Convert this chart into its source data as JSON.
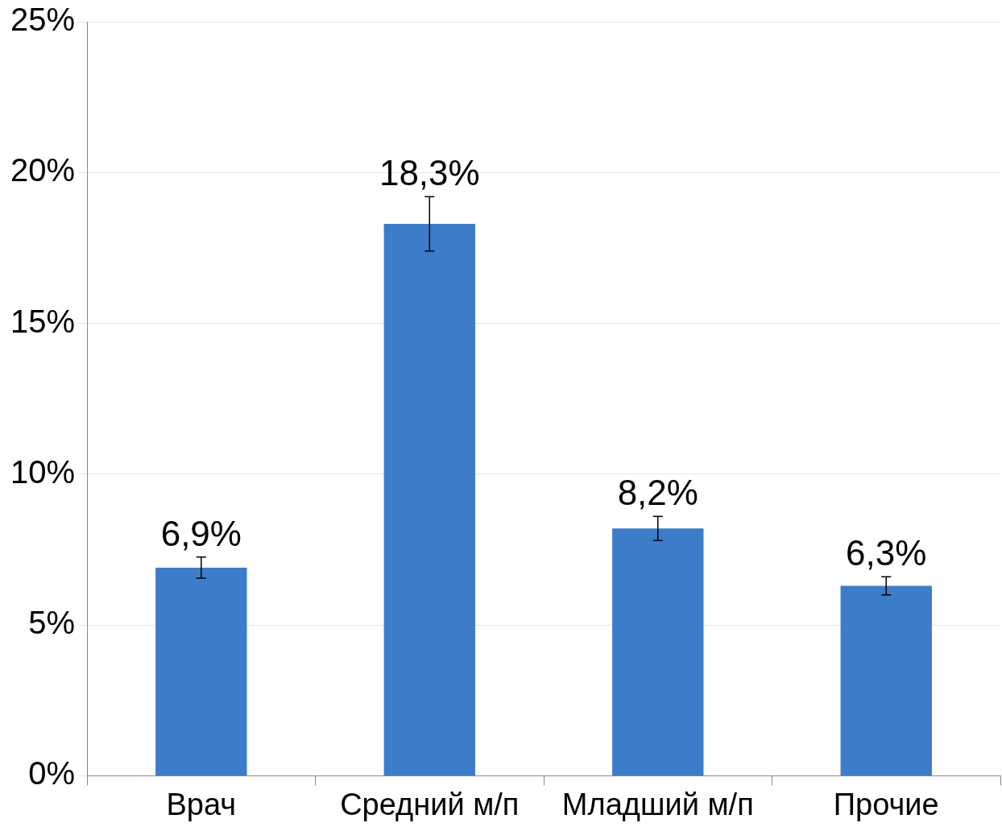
{
  "chart_data": {
    "type": "bar",
    "categories": [
      "Врач",
      "Средний м/п",
      "Младший м/п",
      "Прочие"
    ],
    "values": [
      6.9,
      18.3,
      8.2,
      6.3
    ],
    "errors": [
      0.35,
      0.9,
      0.4,
      0.3
    ],
    "value_labels": [
      "6,9%",
      "18,3%",
      "8,2%",
      "6,3%"
    ],
    "color": "#3d7cc9",
    "ylim": [
      0,
      25
    ],
    "yticks": [
      {
        "value": 0,
        "label": "0%"
      },
      {
        "value": 5,
        "label": "5%"
      },
      {
        "value": 10,
        "label": "10%"
      },
      {
        "value": 15,
        "label": "15%"
      },
      {
        "value": 20,
        "label": "20%"
      },
      {
        "value": 25,
        "label": "25%"
      }
    ],
    "grid": "y",
    "legend": false
  }
}
